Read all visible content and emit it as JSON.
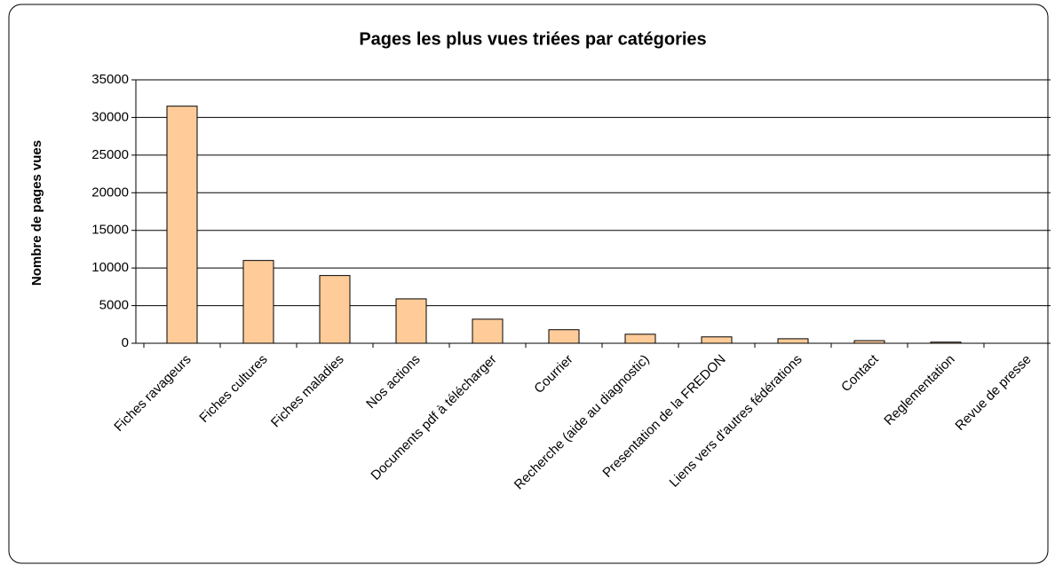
{
  "chart_data": {
    "type": "bar",
    "title": "Pages les plus vues triées par catégories",
    "y_label": "Nombre de pages vues",
    "categories": [
      "Fiches ravageurs",
      "Fiches cultures",
      "Fiches maladies",
      "Nos actions",
      "Documents pdf à télécharger",
      "Courrier",
      "Recherche (aide au diagnostic)",
      "Presentation de la FREDON",
      "Liens vers d'autres fédérations",
      "Contact",
      "Reglementation",
      "Revue de presse"
    ],
    "values": [
      31500,
      11000,
      9000,
      5900,
      3200,
      1800,
      1200,
      850,
      600,
      350,
      150,
      0
    ],
    "color": "#ffcc99",
    "ylim": [
      0,
      35000
    ],
    "yticks": [
      0,
      5000,
      10000,
      15000,
      20000,
      25000,
      30000,
      35000
    ],
    "grid": true
  }
}
